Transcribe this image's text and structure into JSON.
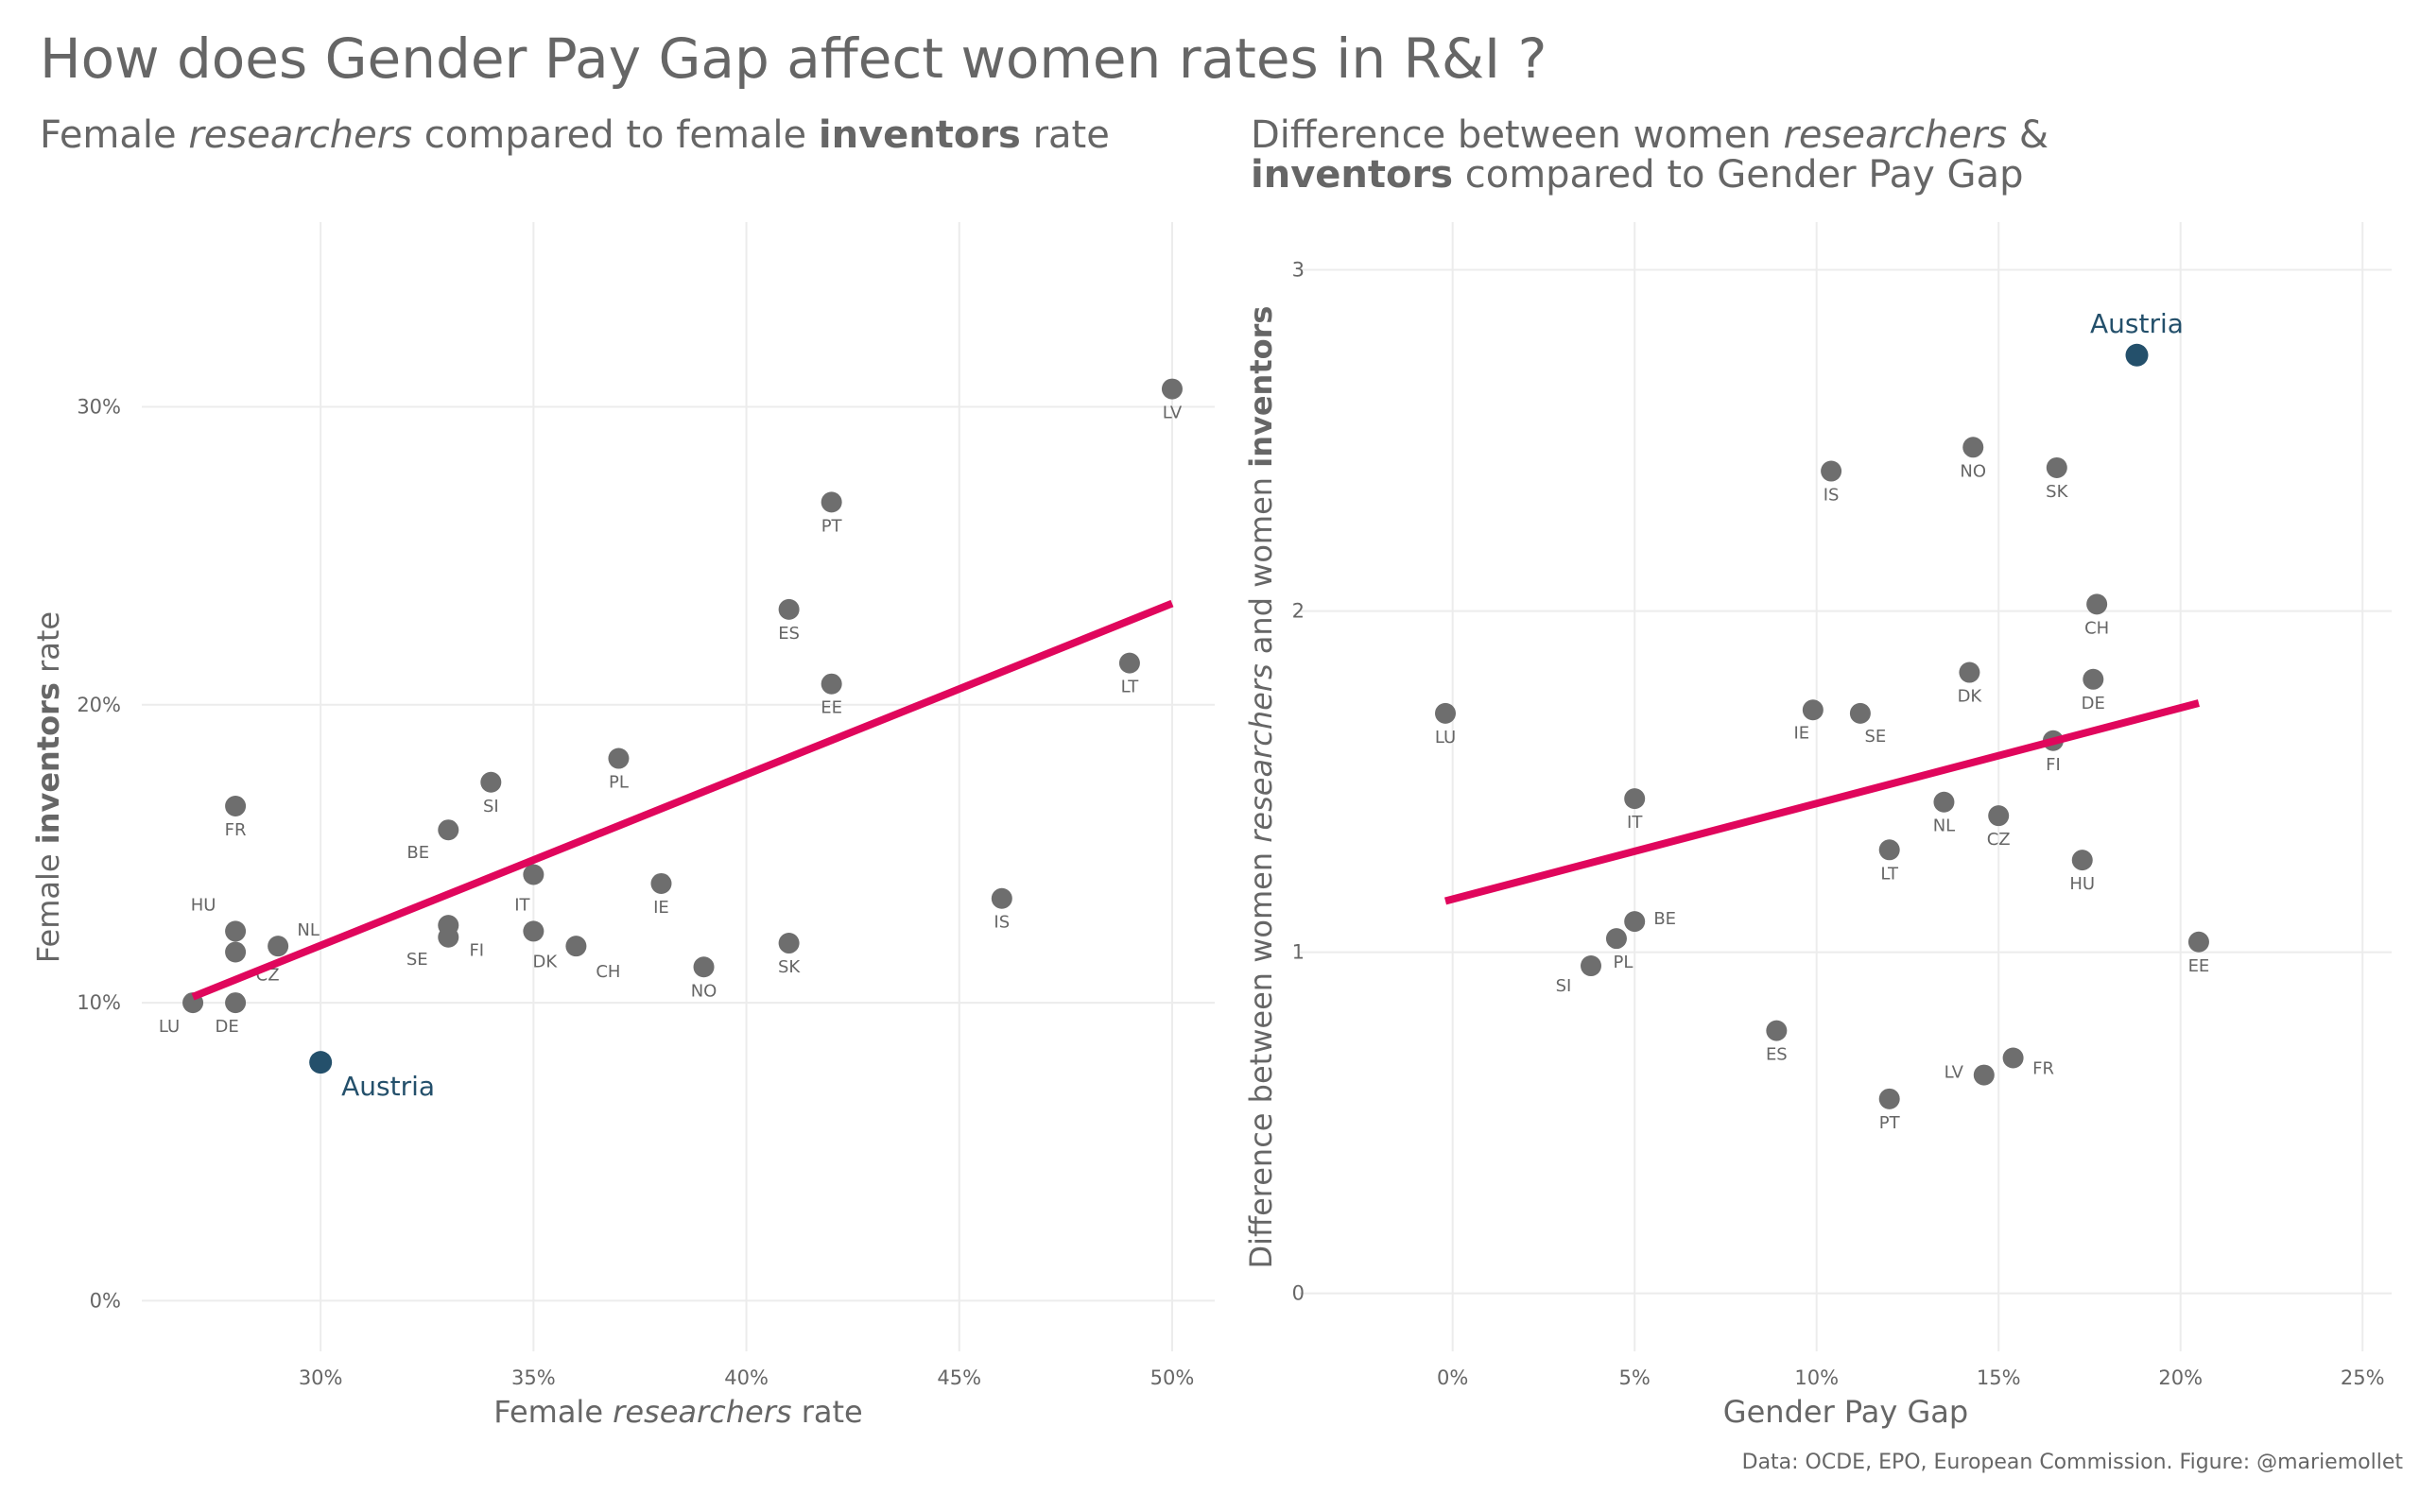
{
  "title": "How does Gender Pay Gap affect women rates in R&I ?",
  "subtitles": {
    "left": [
      {
        "text": "Female ",
        "style": "normal"
      },
      {
        "text": "researchers",
        "style": "italic"
      },
      {
        "text": " compared to female ",
        "style": "normal"
      },
      {
        "text": "inventors",
        "style": "bold"
      },
      {
        "text": " rate",
        "style": "normal"
      }
    ],
    "right": [
      {
        "text": "Difference between women ",
        "style": "normal"
      },
      {
        "text": "researchers",
        "style": "italic"
      },
      {
        "text": " & ",
        "style": "normal"
      },
      {
        "text": "inventors",
        "style": "bold"
      },
      {
        "text": " compared to Gender Pay Gap",
        "style": "normal"
      }
    ]
  },
  "caption": "Data: OCDE, EPO, European Commission. Figure: @mariemollet",
  "colors": {
    "points": "#6e6e6e",
    "highlight": "#24506b",
    "trend": "#e0065c",
    "grid": "#ececec",
    "text": "#666666"
  },
  "chart_data": [
    {
      "type": "scatter",
      "xlabel": [
        {
          "text": "Female ",
          "style": "normal"
        },
        {
          "text": "researchers",
          "style": "italic"
        },
        {
          "text": " rate",
          "style": "normal"
        }
      ],
      "ylabel": [
        {
          "text": "Female ",
          "style": "normal"
        },
        {
          "text": "inventors",
          "style": "bold"
        },
        {
          "text": " rate",
          "style": "normal"
        }
      ],
      "xlim": [
        0.258,
        0.51
      ],
      "ylim": [
        -0.017,
        0.362
      ],
      "xticks": [
        0.3,
        0.35,
        0.4,
        0.45,
        0.5
      ],
      "xtick_labels": [
        "30%",
        "35%",
        "40%",
        "45%",
        "50%"
      ],
      "yticks": [
        0.0,
        0.1,
        0.2,
        0.3
      ],
      "ytick_labels": [
        "0%",
        "10%",
        "20%",
        "30%"
      ],
      "grid": true,
      "points": [
        {
          "label": "LV",
          "x": 0.5,
          "y": 0.306
        },
        {
          "label": "PT",
          "x": 0.42,
          "y": 0.268
        },
        {
          "label": "ES",
          "x": 0.41,
          "y": 0.232
        },
        {
          "label": "EE",
          "x": 0.42,
          "y": 0.207
        },
        {
          "label": "LT",
          "x": 0.49,
          "y": 0.214
        },
        {
          "label": "PL",
          "x": 0.37,
          "y": 0.182
        },
        {
          "label": "SI",
          "x": 0.34,
          "y": 0.174
        },
        {
          "label": "FR",
          "x": 0.28,
          "y": 0.166
        },
        {
          "label": "BE",
          "x": 0.33,
          "y": 0.158
        },
        {
          "label": "IT",
          "x": 0.35,
          "y": 0.143
        },
        {
          "label": "IE",
          "x": 0.38,
          "y": 0.14
        },
        {
          "label": "IS",
          "x": 0.46,
          "y": 0.135
        },
        {
          "label": "SE",
          "x": 0.33,
          "y": 0.126
        },
        {
          "label": "FI",
          "x": 0.33,
          "y": 0.122
        },
        {
          "label": "DK",
          "x": 0.35,
          "y": 0.124
        },
        {
          "label": "CH",
          "x": 0.36,
          "y": 0.119
        },
        {
          "label": "SK",
          "x": 0.41,
          "y": 0.12
        },
        {
          "label": "NO",
          "x": 0.39,
          "y": 0.112
        },
        {
          "label": "HU",
          "x": 0.28,
          "y": 0.124
        },
        {
          "label": "NL",
          "x": 0.29,
          "y": 0.119
        },
        {
          "label": "CZ",
          "x": 0.28,
          "y": 0.117
        },
        {
          "label": "LU",
          "x": 0.27,
          "y": 0.1
        },
        {
          "label": "DE",
          "x": 0.28,
          "y": 0.1
        }
      ],
      "highlight": {
        "label": "Austria",
        "x": 0.3,
        "y": 0.08
      },
      "trend": {
        "x": [
          0.27,
          0.5
        ],
        "y": [
          0.102,
          0.234
        ]
      }
    },
    {
      "type": "scatter",
      "xlabel": [
        {
          "text": "Gender Pay Gap",
          "style": "normal"
        }
      ],
      "ylabel": [
        {
          "text": "Difference between women ",
          "style": "normal"
        },
        {
          "text": "researchers",
          "style": "italic"
        },
        {
          "text": " and women ",
          "style": "normal"
        },
        {
          "text": "inventors",
          "style": "bold"
        }
      ],
      "xlim": [
        -0.042,
        0.258
      ],
      "ylim": [
        -0.17,
        3.14
      ],
      "xticks": [
        0.0,
        0.05,
        0.1,
        0.15,
        0.2,
        0.25
      ],
      "xtick_labels": [
        "0%",
        "5%",
        "10%",
        "15%",
        "20%",
        "25%"
      ],
      "yticks": [
        0,
        1,
        2,
        3
      ],
      "ytick_labels": [
        "0",
        "1",
        "2",
        "3"
      ],
      "grid": true,
      "points": [
        {
          "label": "NO",
          "x": 0.143,
          "y": 2.48
        },
        {
          "label": "IS",
          "x": 0.104,
          "y": 2.41
        },
        {
          "label": "SK",
          "x": 0.166,
          "y": 2.42
        },
        {
          "label": "CH",
          "x": 0.177,
          "y": 2.02
        },
        {
          "label": "DK",
          "x": 0.142,
          "y": 1.82
        },
        {
          "label": "DE",
          "x": 0.176,
          "y": 1.8
        },
        {
          "label": "LU",
          "x": -0.002,
          "y": 1.7
        },
        {
          "label": "IE",
          "x": 0.099,
          "y": 1.71
        },
        {
          "label": "SE",
          "x": 0.112,
          "y": 1.7
        },
        {
          "label": "FI",
          "x": 0.165,
          "y": 1.62
        },
        {
          "label": "IT",
          "x": 0.05,
          "y": 1.45
        },
        {
          "label": "NL",
          "x": 0.135,
          "y": 1.44
        },
        {
          "label": "CZ",
          "x": 0.15,
          "y": 1.4
        },
        {
          "label": "LT",
          "x": 0.12,
          "y": 1.3
        },
        {
          "label": "HU",
          "x": 0.173,
          "y": 1.27
        },
        {
          "label": "BE",
          "x": 0.05,
          "y": 1.09
        },
        {
          "label": "PL",
          "x": 0.045,
          "y": 1.04
        },
        {
          "label": "SI",
          "x": 0.038,
          "y": 0.96
        },
        {
          "label": "EE",
          "x": 0.205,
          "y": 1.03
        },
        {
          "label": "ES",
          "x": 0.089,
          "y": 0.77
        },
        {
          "label": "FR",
          "x": 0.154,
          "y": 0.69
        },
        {
          "label": "LV",
          "x": 0.146,
          "y": 0.64
        },
        {
          "label": "PT",
          "x": 0.12,
          "y": 0.57
        }
      ],
      "highlight": {
        "label": "Austria",
        "x": 0.188,
        "y": 2.75
      },
      "trend": {
        "x": [
          -0.002,
          0.205
        ],
        "y": [
          1.15,
          1.73
        ]
      }
    }
  ]
}
